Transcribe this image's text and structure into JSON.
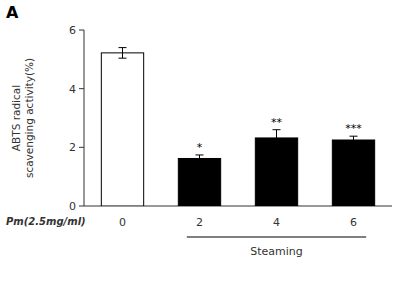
{
  "chart_data": {
    "type": "bar",
    "title": "A",
    "categories": [
      "0",
      "2",
      "4",
      "6"
    ],
    "values": [
      5.22,
      1.62,
      2.32,
      2.25
    ],
    "errors": [
      0.18,
      0.12,
      0.28,
      0.13
    ],
    "colors": [
      "white",
      "black",
      "black",
      "black"
    ],
    "ylabel": "ABTS radical\nscavenging activity(%)",
    "xlabel": "Pm(2.5mg/ml)",
    "ylim": [
      0,
      6
    ],
    "yticks": [
      0,
      2,
      4,
      6
    ],
    "grid": false,
    "annotations": [
      {
        "category": "2",
        "text": "*"
      },
      {
        "category": "4",
        "text": "**"
      },
      {
        "category": "6",
        "text": "***"
      }
    ],
    "group_labels": [
      {
        "text": "Steaming",
        "categories": [
          "2",
          "4",
          "6"
        ]
      }
    ]
  }
}
